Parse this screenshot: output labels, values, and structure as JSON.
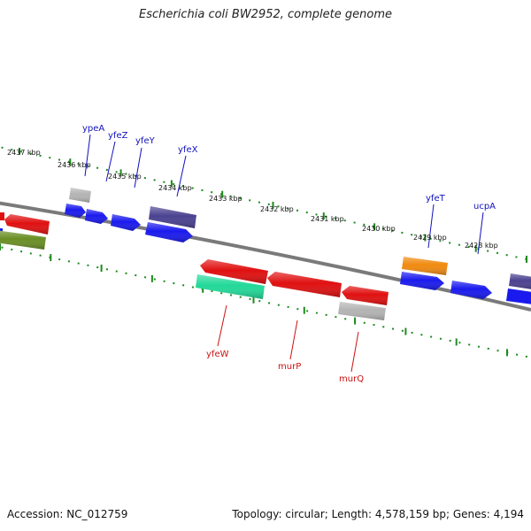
{
  "title": "Escherichia coli BW2952, complete genome",
  "footer": {
    "accession": "Accession: NC_012759",
    "summary": "Topology: circular; Length: 4,578,159 bp; Genes: 4,194"
  },
  "colors": {
    "backbone": "#7a7a7a",
    "ruler": "#1e8a1e",
    "forward_label": "#1111bb",
    "reverse_label": "#cc1111"
  },
  "ruler_labels": [
    {
      "text": "2437 kbp"
    },
    {
      "text": "2436 kbp"
    },
    {
      "text": "2435 kbp"
    },
    {
      "text": "2434 kbp"
    },
    {
      "text": "2433 kbp"
    },
    {
      "text": "2432 kbp"
    },
    {
      "text": "2431 kbp"
    },
    {
      "text": "2430 kbp"
    },
    {
      "text": "2429 kbp"
    },
    {
      "text": "2428 kbp"
    }
  ],
  "forward_gene_labels": [
    "ypeA",
    "yfeZ",
    "yfeY",
    "yfeX",
    "yfeT",
    "ucpA"
  ],
  "reverse_gene_labels": [
    "yfeW",
    "murP",
    "murQ"
  ],
  "gene_colors": {
    "blue": "#1a1aee",
    "gray": "#b4b4b4",
    "indigo": "#4a4290",
    "red": "#e01010",
    "olive": "#6a8e24",
    "teal": "#22d99a",
    "orange": "#f08a10"
  }
}
